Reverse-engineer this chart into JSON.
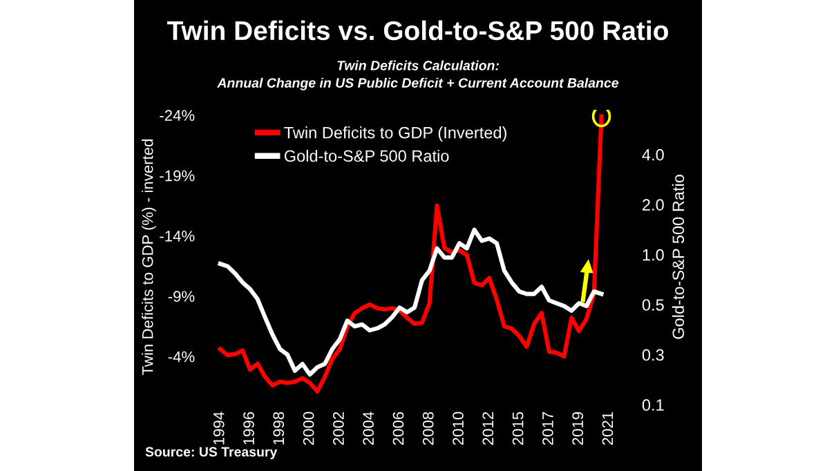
{
  "chart_data": {
    "type": "line",
    "title": "Twin Deficits vs. Gold-to-S&P 500 Ratio",
    "subtitle": "Twin Deficits Calculation:\nAnnual Change in US Public Deficit + Current Account Balance",
    "ylabel": "Twin Deficits to GDP (%) - inverted",
    "y2label": "Gold-to-S&P 500 Ratio",
    "annotations": [
      "Source: US Treasury"
    ],
    "categories": [
      "1994",
      null,
      null,
      null,
      "1996",
      null,
      null,
      null,
      "1998",
      null,
      null,
      null,
      "2000",
      null,
      null,
      null,
      "2002",
      null,
      null,
      null,
      "2004",
      null,
      null,
      null,
      "2006",
      null,
      null,
      null,
      "2008",
      null,
      null,
      null,
      "2010",
      null,
      null,
      null,
      "2012",
      null,
      null,
      null,
      "2015",
      null,
      null,
      null,
      "2017",
      null,
      null,
      null,
      "2019",
      null,
      null,
      null,
      "2021"
    ],
    "series": [
      {
        "name": "Twin Deficits to GDP (Inverted)",
        "color": "#ff0000",
        "values": [
          -4.6,
          -4.1,
          -4.2,
          -4.5,
          -2.9,
          -3.4,
          -2.3,
          -1.6,
          -1.9,
          -1.8,
          -1.9,
          -2.2,
          -1.8,
          -1.1,
          -2.3,
          -3.8,
          -4.6,
          -6.5,
          -7.6,
          -8.0,
          -8.3,
          -8.0,
          -7.9,
          -8.0,
          -7.8,
          -7.2,
          -6.7,
          -6.8,
          -8.4,
          -16.5,
          -13.0,
          -12.6,
          -12.8,
          -12.4,
          -10.1,
          -9.9,
          -10.5,
          -8.7,
          -6.5,
          -6.3,
          -5.7,
          -4.8,
          -6.7,
          -7.6,
          -4.4,
          -4.3,
          -4.0,
          -7.2,
          -6.1,
          -7.1,
          -9.2,
          -23.9,
          null
        ]
      },
      {
        "name": "Gold-to-S&P 500 Ratio",
        "color": "#ffffff",
        "axis": "y2",
        "values": [
          0.88,
          0.85,
          0.77,
          0.68,
          0.62,
          0.54,
          0.42,
          0.33,
          0.27,
          0.25,
          0.2,
          0.22,
          0.19,
          0.21,
          0.22,
          0.27,
          0.31,
          0.4,
          0.37,
          0.38,
          0.35,
          0.36,
          0.38,
          0.42,
          0.48,
          0.45,
          0.48,
          0.7,
          0.8,
          1.09,
          0.96,
          0.96,
          1.17,
          1.09,
          1.41,
          1.21,
          1.25,
          1.17,
          0.8,
          0.68,
          0.6,
          0.58,
          0.58,
          0.64,
          0.53,
          0.51,
          0.49,
          0.46,
          0.51,
          0.49,
          0.6,
          0.58,
          null
        ]
      }
    ],
    "ylim": [
      0,
      -24.5
    ],
    "yticks": [
      {
        "value": -24,
        "label": "-24%"
      },
      {
        "value": -19,
        "label": "-19%"
      },
      {
        "value": -14,
        "label": "-14%"
      },
      {
        "value": -9,
        "label": "-9%"
      },
      {
        "value": -4,
        "label": "-4%"
      }
    ],
    "log": "y2",
    "y2lim": [
      0.125,
      7.5
    ],
    "y2ticks": [
      {
        "value": 0.125,
        "label": "0.1"
      },
      {
        "value": 0.25,
        "label": "0.3"
      },
      0.5,
      {
        "value": 1,
        "label": "1.0"
      },
      {
        "value": 2,
        "label": "2.0"
      },
      {
        "value": 4,
        "label": "4.0"
      }
    ],
    "legend": "top left",
    "grid": false,
    "marker": "none",
    "line_style": "solid"
  }
}
